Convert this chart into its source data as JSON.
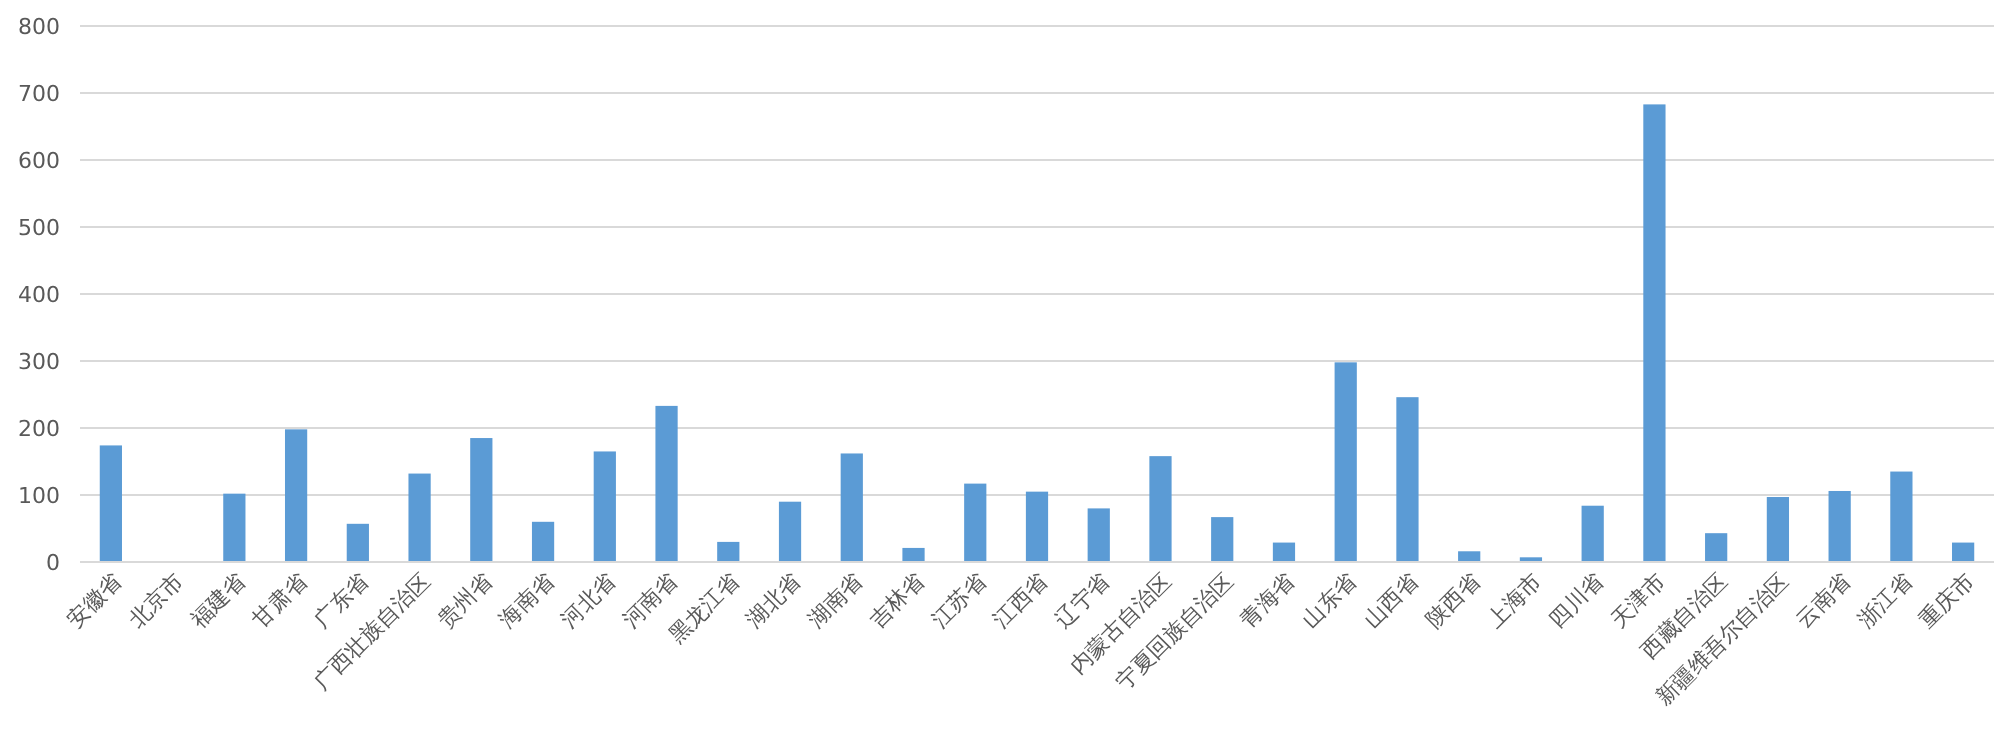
{
  "chart_data": {
    "type": "bar",
    "categories": [
      "安徽省",
      "北京市",
      "福建省",
      "甘肃省",
      "广东省",
      "广西壮族自治区",
      "贵州省",
      "海南省",
      "河北省",
      "河南省",
      "黑龙江省",
      "湖北省",
      "湖南省",
      "吉林省",
      "江苏省",
      "江西省",
      "辽宁省",
      "内蒙古自治区",
      "宁夏回族自治区",
      "青海省",
      "山东省",
      "山西省",
      "陕西省",
      "上海市",
      "四川省",
      "天津市",
      "西藏自治区",
      "新疆维吾尔自治区",
      "云南省",
      "浙江省",
      "重庆市"
    ],
    "values": [
      174,
      0,
      102,
      198,
      57,
      132,
      185,
      60,
      165,
      233,
      30,
      90,
      162,
      21,
      117,
      105,
      80,
      158,
      67,
      29,
      298,
      246,
      16,
      7,
      84,
      683,
      43,
      97,
      106,
      135,
      29
    ],
    "color": "#5b9bd5",
    "ylim": [
      0,
      800
    ],
    "yticks": [
      0,
      100,
      200,
      300,
      400,
      500,
      600,
      700,
      800
    ],
    "grid": "y"
  }
}
